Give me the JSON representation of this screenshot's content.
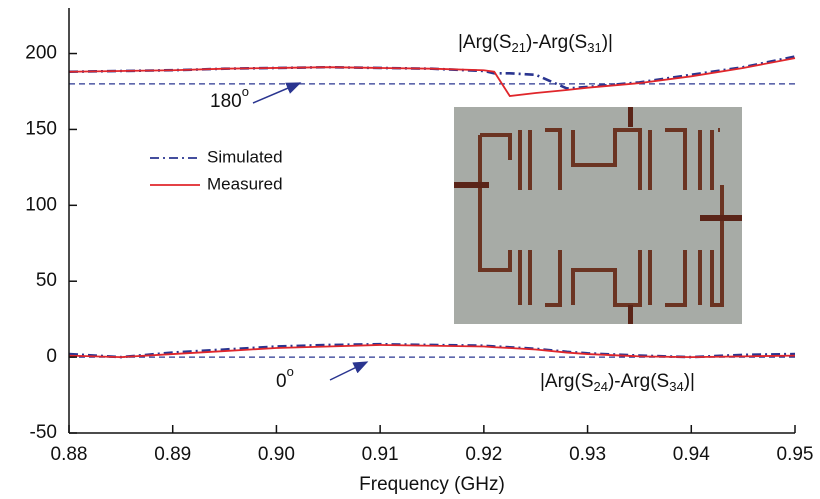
{
  "chart_data": {
    "type": "line",
    "x_label": "Frequency (GHz)",
    "xlim": [
      0.88,
      0.95
    ],
    "xticks": [
      0.88,
      0.89,
      {
        "value": 0.9,
        "label": "0.90"
      },
      0.91,
      0.92,
      0.93,
      0.94,
      0.95
    ],
    "ylim": [
      -50,
      230
    ],
    "yticks": [
      -50,
      0,
      50,
      100,
      150,
      200
    ],
    "legend": "upper-left",
    "series": [
      {
        "name": "Simulated",
        "color": "#2a3590",
        "dash": "dashdot",
        "x": [
          0.88,
          0.885,
          0.89,
          0.895,
          0.9,
          0.905,
          0.91,
          0.915,
          0.92,
          0.921,
          0.9225,
          0.925,
          0.928,
          0.93,
          0.935,
          0.94,
          0.945,
          0.95,
          null,
          0.88,
          0.885,
          0.89,
          0.895,
          0.9,
          0.905,
          0.91,
          0.915,
          0.92,
          0.921,
          0.9225,
          0.925,
          0.928,
          0.93,
          0.935,
          0.94,
          0.945,
          0.95
        ],
        "values": [
          188,
          188.5,
          189,
          190,
          190.5,
          191,
          190.5,
          190,
          188.5,
          187,
          187,
          186,
          177,
          178,
          181,
          186,
          191,
          198,
          null,
          2,
          0,
          3,
          5,
          7,
          8,
          8.5,
          8,
          7.5,
          7,
          6.5,
          5.5,
          3.5,
          2.5,
          1,
          0,
          1.5,
          2
        ]
      },
      {
        "name": "Measured",
        "color": "#e0262b",
        "dash": "solid",
        "x": [
          0.88,
          0.885,
          0.89,
          0.895,
          0.9,
          0.905,
          0.91,
          0.915,
          0.92,
          0.921,
          0.9225,
          0.925,
          0.928,
          0.93,
          0.935,
          0.94,
          0.945,
          0.95,
          null,
          0.88,
          0.885,
          0.89,
          0.895,
          0.9,
          0.905,
          0.91,
          0.915,
          0.92,
          0.921,
          0.9225,
          0.925,
          0.928,
          0.93,
          0.935,
          0.94,
          0.945,
          0.95
        ],
        "values": [
          188,
          188.5,
          189,
          190,
          190.5,
          191,
          190.5,
          190,
          189,
          188,
          172,
          174,
          176,
          177.5,
          180.5,
          185,
          190.5,
          197,
          null,
          1,
          0,
          2,
          4,
          6,
          7,
          8,
          7.5,
          7,
          6.5,
          6,
          5,
          3,
          2,
          0.5,
          0,
          0.5,
          1
        ]
      }
    ],
    "reference_lines": [
      {
        "value": 180,
        "label": "180",
        "sup": "o",
        "color": "#2a3590"
      },
      {
        "value": 0,
        "label": "0",
        "sup": "o",
        "color": "#2a3590"
      }
    ],
    "annotations": [
      {
        "parts": [
          "|Arg(S",
          "21",
          ")-Arg(S",
          "31",
          ")|"
        ]
      },
      {
        "parts": [
          "|Arg(S",
          "24",
          ")-Arg(S",
          "34",
          ")|"
        ]
      }
    ]
  }
}
